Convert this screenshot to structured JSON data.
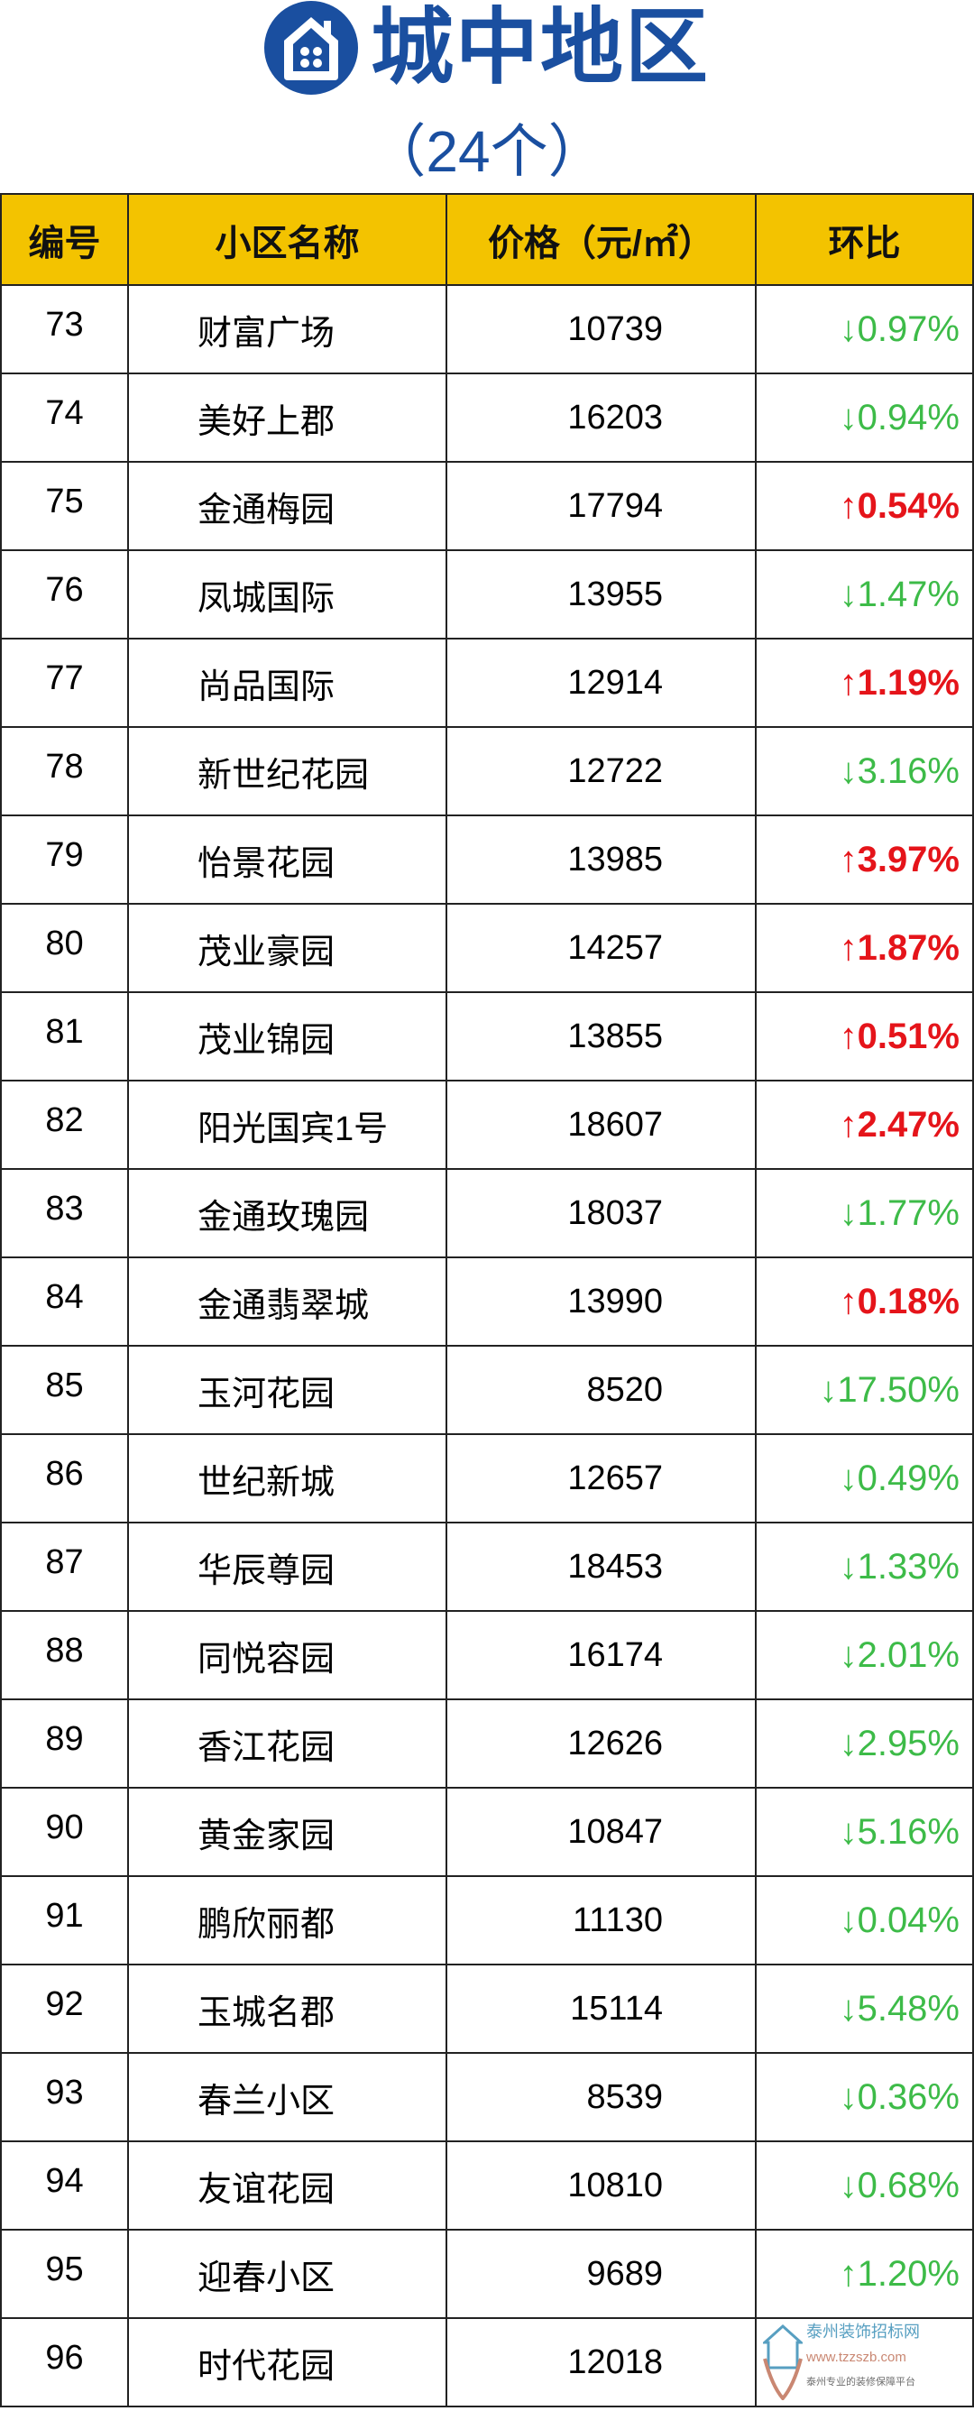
{
  "title": "城中地区",
  "count": "（24个）",
  "colors": {
    "brand_blue": "#1a4fa0",
    "header_yellow": "#f3c300",
    "down_green": "#3dbb48",
    "up_red": "#e5141a"
  },
  "header": {
    "id": "编号",
    "name": "小区名称",
    "price": "价格（元/㎡）",
    "change": "环比"
  },
  "rows": [
    {
      "id": "73",
      "name": "财富广场",
      "price": "10739",
      "change": "↓0.97%",
      "dir": "down"
    },
    {
      "id": "74",
      "name": "美好上郡",
      "price": "16203",
      "change": "↓0.94%",
      "dir": "down"
    },
    {
      "id": "75",
      "name": "金通梅园",
      "price": "17794",
      "change": "↑0.54%",
      "dir": "up"
    },
    {
      "id": "76",
      "name": "凤城国际",
      "price": "13955",
      "change": "↓1.47%",
      "dir": "down"
    },
    {
      "id": "77",
      "name": "尚品国际",
      "price": "12914",
      "change": "↑1.19%",
      "dir": "up"
    },
    {
      "id": "78",
      "name": "新世纪花园",
      "price": "12722",
      "change": "↓3.16%",
      "dir": "down"
    },
    {
      "id": "79",
      "name": "怡景花园",
      "price": "13985",
      "change": "↑3.97%",
      "dir": "up"
    },
    {
      "id": "80",
      "name": "茂业豪园",
      "price": "14257",
      "change": "↑1.87%",
      "dir": "up"
    },
    {
      "id": "81",
      "name": "茂业锦园",
      "price": "13855",
      "change": "↑0.51%",
      "dir": "up"
    },
    {
      "id": "82",
      "name": "阳光国宾1号",
      "price": "18607",
      "change": "↑2.47%",
      "dir": "up"
    },
    {
      "id": "83",
      "name": "金通玫瑰园",
      "price": "18037",
      "change": "↓1.77%",
      "dir": "down"
    },
    {
      "id": "84",
      "name": "金通翡翠城",
      "price": "13990",
      "change": "↑0.18%",
      "dir": "up"
    },
    {
      "id": "85",
      "name": "玉河花园",
      "price": "8520",
      "change": "↓17.50%",
      "dir": "down"
    },
    {
      "id": "86",
      "name": "世纪新城",
      "price": "12657",
      "change": "↓0.49%",
      "dir": "down"
    },
    {
      "id": "87",
      "name": "华辰尊园",
      "price": "18453",
      "change": "↓1.33%",
      "dir": "down"
    },
    {
      "id": "88",
      "name": "同悦容园",
      "price": "16174",
      "change": "↓2.01%",
      "dir": "down"
    },
    {
      "id": "89",
      "name": "香江花园",
      "price": "12626",
      "change": "↓2.95%",
      "dir": "down"
    },
    {
      "id": "90",
      "name": "黄金家园",
      "price": "10847",
      "change": "↓5.16%",
      "dir": "down"
    },
    {
      "id": "91",
      "name": "鹏欣丽都",
      "price": "11130",
      "change": "↓0.04%",
      "dir": "down"
    },
    {
      "id": "92",
      "name": "玉城名郡",
      "price": "15114",
      "change": "↓5.48%",
      "dir": "down"
    },
    {
      "id": "93",
      "name": "春兰小区",
      "price": "8539",
      "change": "↓0.36%",
      "dir": "down"
    },
    {
      "id": "94",
      "name": "友谊花园",
      "price": "10810",
      "change": "↓0.68%",
      "dir": "down"
    },
    {
      "id": "95",
      "name": "迎春小区",
      "price": "9689",
      "change": "↑1.20%",
      "dir": "upg"
    },
    {
      "id": "96",
      "name": "时代花园",
      "price": "12018",
      "change": "",
      "dir": "none"
    }
  ],
  "watermark": {
    "name": "泰州装饰招标网",
    "url": "www.tzzszb.com",
    "slogan": "泰州专业的装修保障平台"
  }
}
